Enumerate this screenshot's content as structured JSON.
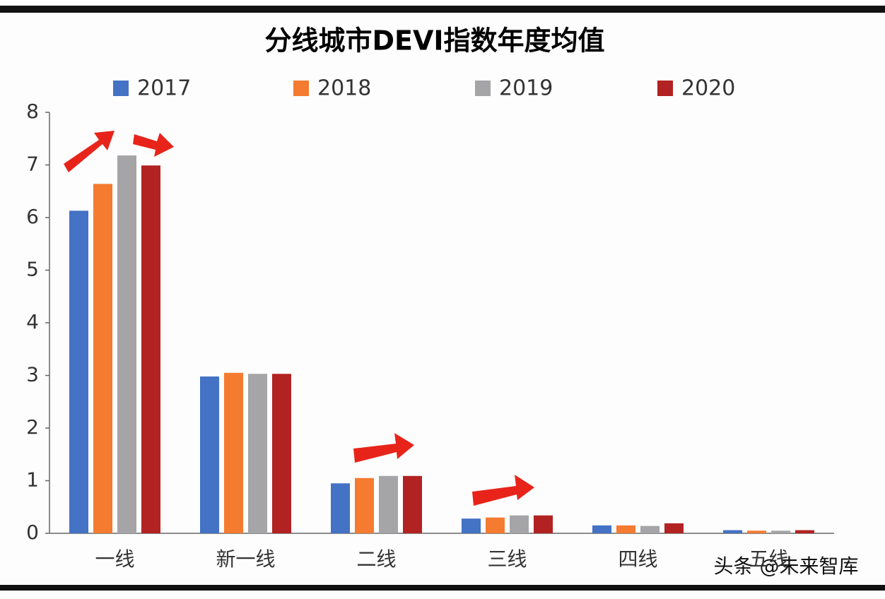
{
  "chart_data": {
    "type": "bar",
    "title": "分线城市DEVI指数年度均值",
    "categories": [
      "一线",
      "新一线",
      "二线",
      "三线",
      "四线",
      "五线"
    ],
    "series": [
      {
        "name": "2017",
        "color": "#4472c4",
        "values": [
          6.13,
          2.98,
          0.95,
          0.28,
          0.15,
          0.06
        ]
      },
      {
        "name": "2018",
        "color": "#f47b30",
        "values": [
          6.64,
          3.05,
          1.05,
          0.3,
          0.15,
          0.05
        ]
      },
      {
        "name": "2019",
        "color": "#a5a5a8",
        "values": [
          7.18,
          3.03,
          1.09,
          0.34,
          0.14,
          0.05
        ]
      },
      {
        "name": "2020",
        "color": "#b22222",
        "values": [
          6.99,
          3.03,
          1.09,
          0.34,
          0.19,
          0.06
        ]
      }
    ],
    "ylim": [
      0,
      8
    ],
    "yticks": [
      0,
      1,
      2,
      3,
      4,
      5,
      6,
      7,
      8
    ],
    "grid": false,
    "annotation": "头条 @未来智库"
  }
}
